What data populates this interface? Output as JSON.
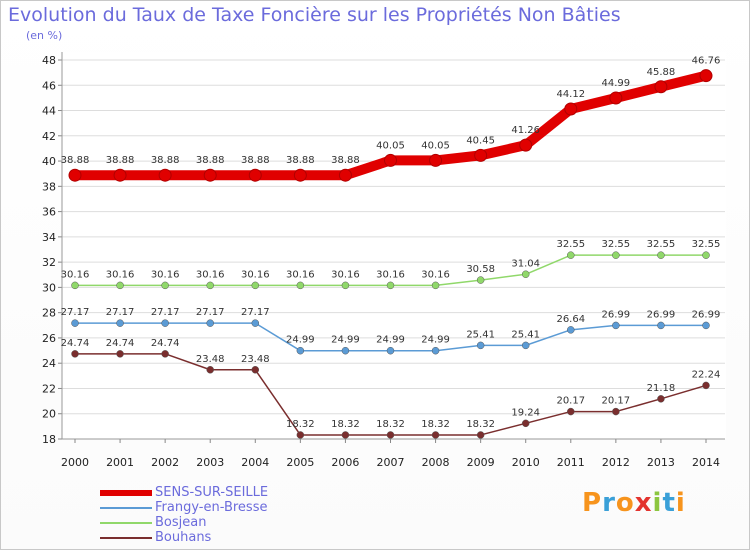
{
  "title": "Evolution du Taux de Taxe Foncière sur les Propriétés Non Bâties",
  "unit": "(en %)",
  "logo": {
    "text": "Proxiti",
    "colors": [
      "#f7941d",
      "#3aa0d8",
      "#f7941d",
      "#e3342f",
      "#8cc63f",
      "#3aa0d8",
      "#f7941d"
    ]
  },
  "chart_data": {
    "type": "line",
    "title": "Evolution du Taux de Taxe Foncière sur les Propriétés Non Bâties",
    "ylabel": "(en %)",
    "xlabel": "",
    "ylim": [
      18,
      48
    ],
    "yticks": [
      18,
      20,
      22,
      24,
      26,
      28,
      30,
      32,
      34,
      36,
      38,
      40,
      42,
      44,
      46,
      48
    ],
    "categories": [
      "2000",
      "2001",
      "2002",
      "2003",
      "2004",
      "2005",
      "2006",
      "2007",
      "2008",
      "2009",
      "2010",
      "2011",
      "2012",
      "2013",
      "2014"
    ],
    "legend_position": "bottom-left",
    "grid": true,
    "series": [
      {
        "name": "SENS-SUR-SEILLE",
        "color": "#e00000",
        "values": [
          38.88,
          38.88,
          38.88,
          38.88,
          38.88,
          38.88,
          38.88,
          40.05,
          40.05,
          40.45,
          41.26,
          44.12,
          44.99,
          45.88,
          46.76
        ],
        "labels": [
          "38.88",
          "38.88",
          "38.88",
          "38.88",
          "38.88",
          "38.88",
          "38.88",
          "40.05",
          "40.05",
          "40.45",
          "41.26",
          "44.12",
          "44.99",
          "45.88",
          "46.76"
        ]
      },
      {
        "name": "Frangy-en-Bresse",
        "color": "#5b9bd5",
        "values": [
          27.17,
          27.17,
          27.17,
          27.17,
          27.17,
          24.99,
          24.99,
          24.99,
          24.99,
          25.41,
          25.41,
          26.64,
          26.99,
          26.99,
          26.99
        ],
        "labels": [
          "27.17",
          "27.17",
          "27.17",
          "27.17",
          "27.17",
          "24.99",
          "24.99",
          "24.99",
          "24.99",
          "25.41",
          "25.41",
          "26.64",
          "26.99",
          "26.99",
          "26.99"
        ]
      },
      {
        "name": "Bosjean",
        "color": "#90d86a",
        "values": [
          30.16,
          30.16,
          30.16,
          30.16,
          30.16,
          30.16,
          30.16,
          30.16,
          30.16,
          30.58,
          31.04,
          32.55,
          32.55,
          32.55,
          32.55
        ],
        "labels": [
          "30.16",
          "30.16",
          "30.16",
          "30.16",
          "30.16",
          "30.16",
          "30.16",
          "30.16",
          "30.16",
          "30.58",
          "31.04",
          "32.55",
          "32.55",
          "32.55",
          "32.55"
        ]
      },
      {
        "name": "Bouhans",
        "color": "#7a2e2e",
        "values": [
          24.74,
          24.74,
          24.74,
          23.48,
          23.48,
          18.32,
          18.32,
          18.32,
          18.32,
          18.32,
          19.24,
          20.17,
          20.17,
          21.18,
          22.24
        ],
        "labels": [
          "24.74",
          "24.74",
          "24.74",
          "23.48",
          "23.48",
          "18.32",
          "18.32",
          "18.32",
          "18.32",
          "18.32",
          "19.24",
          "20.17",
          "20.17",
          "21.18",
          "22.24"
        ]
      }
    ]
  }
}
